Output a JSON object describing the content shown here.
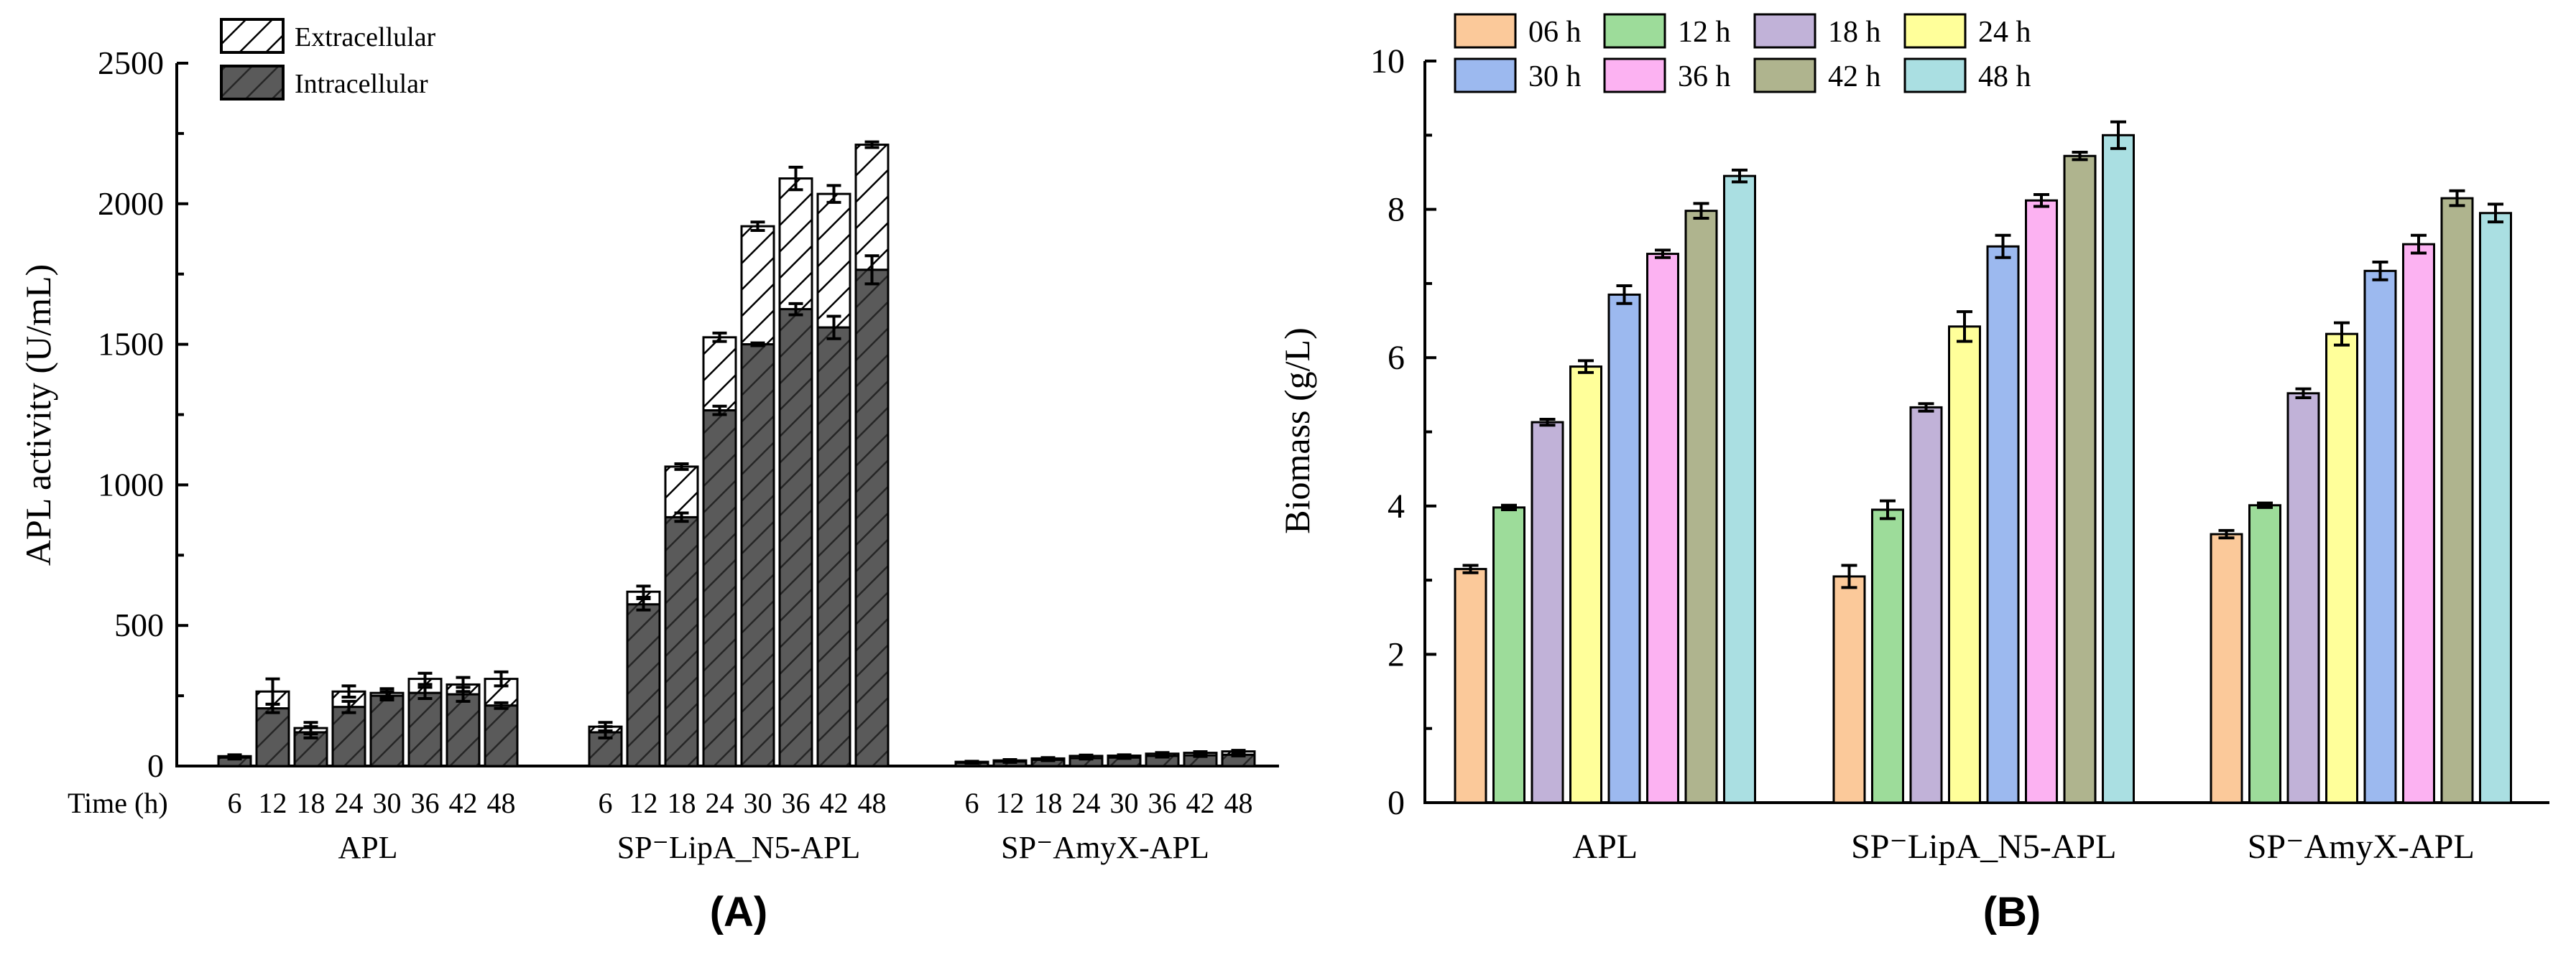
{
  "panel_a": {
    "label": "(A)",
    "legend": [
      "Extracellular",
      "Intracellular"
    ]
  },
  "panel_b": {
    "label": "(B)"
  },
  "chart_data": [
    {
      "id": "A",
      "type": "bar",
      "stacked": true,
      "ylabel": "APL activity (U/mL)",
      "xlabel": "Time (h)",
      "ylim": [
        0,
        2500
      ],
      "yticks": [
        0,
        500,
        1000,
        1500,
        2000,
        2500
      ],
      "legend_position": "top-left",
      "groups": [
        "APL",
        "SP⁻LipA_N5-APL",
        "SP⁻AmyX-APL"
      ],
      "categories": [
        "6",
        "12",
        "18",
        "24",
        "30",
        "36",
        "42",
        "48"
      ],
      "series": [
        {
          "name": "Intracellular",
          "values": [
            [
              30,
              205,
              120,
              210,
              250,
              260,
              255,
              215
            ],
            [
              120,
              575,
              885,
              1265,
              1500,
              1625,
              1560,
              1765
            ],
            [
              12,
              16,
              22,
              28,
              30,
              36,
              38,
              40
            ]
          ],
          "errors": [
            [
              5,
              15,
              20,
              20,
              15,
              20,
              25,
              10
            ],
            [
              20,
              20,
              15,
              15,
              5,
              20,
              40,
              50
            ],
            [
              2,
              3,
              3,
              3,
              3,
              4,
              4,
              4
            ]
          ]
        },
        {
          "name": "Extracellular",
          "values": [
            [
              5,
              60,
              15,
              55,
              10,
              50,
              35,
              95
            ],
            [
              20,
              45,
              180,
              260,
              420,
              465,
              475,
              445
            ],
            [
              3,
              4,
              5,
              8,
              7,
              8,
              9,
              12
            ]
          ],
          "errors": [
            [
              5,
              45,
              20,
              20,
              15,
              20,
              25,
              25
            ],
            [
              15,
              20,
              10,
              15,
              15,
              40,
              30,
              10
            ],
            [
              2,
              3,
              3,
              3,
              3,
              4,
              4,
              4
            ]
          ]
        }
      ]
    },
    {
      "id": "B",
      "type": "bar",
      "ylabel": "Biomass (g/L)",
      "ylim": [
        0,
        10
      ],
      "yticks": [
        0,
        2,
        4,
        6,
        8,
        10
      ],
      "legend_position": "top-left",
      "categories": [
        "APL",
        "SP⁻LipA_N5-APL",
        "SP⁻AmyX-APL"
      ],
      "series": [
        {
          "name": "06 h",
          "color": "#fbc99a",
          "values": [
            3.15,
            3.05,
            3.62
          ],
          "errors": [
            0.05,
            0.15,
            0.05
          ]
        },
        {
          "name": "12 h",
          "color": "#9ddc9a",
          "values": [
            3.98,
            3.95,
            4.01
          ],
          "errors": [
            0.03,
            0.12,
            0.03
          ]
        },
        {
          "name": "18 h",
          "color": "#c1b2d8",
          "values": [
            5.13,
            5.33,
            5.52
          ],
          "errors": [
            0.04,
            0.05,
            0.06
          ]
        },
        {
          "name": "24 h",
          "color": "#ffff9a",
          "values": [
            5.88,
            6.42,
            6.32
          ],
          "errors": [
            0.08,
            0.2,
            0.15
          ]
        },
        {
          "name": "30 h",
          "color": "#9cb9ef",
          "values": [
            6.85,
            7.5,
            7.17
          ],
          "errors": [
            0.12,
            0.15,
            0.12
          ]
        },
        {
          "name": "36 h",
          "color": "#fcb2f2",
          "values": [
            7.4,
            8.12,
            7.53
          ],
          "errors": [
            0.05,
            0.08,
            0.12
          ]
        },
        {
          "name": "42 h",
          "color": "#afb48e",
          "values": [
            7.98,
            8.72,
            8.15
          ],
          "errors": [
            0.1,
            0.05,
            0.1
          ]
        },
        {
          "name": "48 h",
          "color": "#aadfe2",
          "values": [
            8.45,
            9.0,
            7.95
          ],
          "errors": [
            0.08,
            0.18,
            0.12
          ]
        }
      ]
    }
  ]
}
